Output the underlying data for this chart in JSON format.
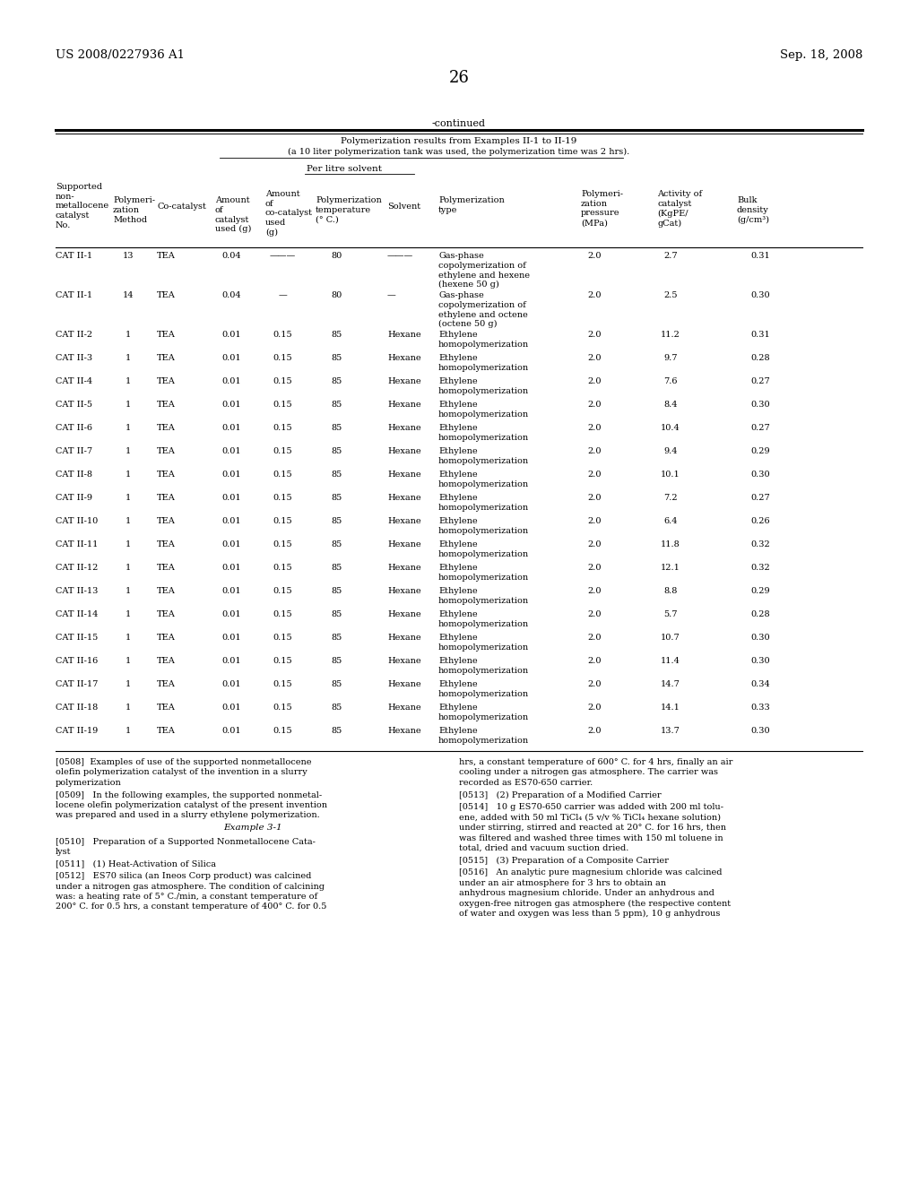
{
  "header_left": "US 2008/0227936 A1",
  "header_right": "Sep. 18, 2008",
  "page_number": "26",
  "continued_label": "-continued",
  "table_title_line1": "Polymerization results from Examples II-1 to II-19",
  "table_title_line2": "(a 10 liter polymerization tank was used, the polymerization time was 2 hrs).",
  "per_litre_label": "Per litre solvent",
  "rows": [
    [
      "CAT II-1",
      "13",
      "TEA",
      "0.04",
      "———",
      "80",
      "———",
      "Gas-phase\ncopolymerization of\nethylene and hexene\n(hexene 50 g)",
      "2.0",
      "2.7",
      "0.31"
    ],
    [
      "CAT II-1",
      "14",
      "TEA",
      "0.04",
      "—",
      "80",
      "—",
      "Gas-phase\ncopolymerization of\nethylene and octene\n(octene 50 g)",
      "2.0",
      "2.5",
      "0.30"
    ],
    [
      "CAT II-2",
      "1",
      "TEA",
      "0.01",
      "0.15",
      "85",
      "Hexane",
      "Ethylene\nhomopolymerization",
      "2.0",
      "11.2",
      "0.31"
    ],
    [
      "CAT II-3",
      "1",
      "TEA",
      "0.01",
      "0.15",
      "85",
      "Hexane",
      "Ethylene\nhomopolymerization",
      "2.0",
      "9.7",
      "0.28"
    ],
    [
      "CAT II-4",
      "1",
      "TEA",
      "0.01",
      "0.15",
      "85",
      "Hexane",
      "Ethylene\nhomopolymerization",
      "2.0",
      "7.6",
      "0.27"
    ],
    [
      "CAT II-5",
      "1",
      "TEA",
      "0.01",
      "0.15",
      "85",
      "Hexane",
      "Ethylene\nhomopolymerization",
      "2.0",
      "8.4",
      "0.30"
    ],
    [
      "CAT II-6",
      "1",
      "TEA",
      "0.01",
      "0.15",
      "85",
      "Hexane",
      "Ethylene\nhomopolymerization",
      "2.0",
      "10.4",
      "0.27"
    ],
    [
      "CAT II-7",
      "1",
      "TEA",
      "0.01",
      "0.15",
      "85",
      "Hexane",
      "Ethylene\nhomopolymerization",
      "2.0",
      "9.4",
      "0.29"
    ],
    [
      "CAT II-8",
      "1",
      "TEA",
      "0.01",
      "0.15",
      "85",
      "Hexane",
      "Ethylene\nhomopolymerization",
      "2.0",
      "10.1",
      "0.30"
    ],
    [
      "CAT II-9",
      "1",
      "TEA",
      "0.01",
      "0.15",
      "85",
      "Hexane",
      "Ethylene\nhomopolymerization",
      "2.0",
      "7.2",
      "0.27"
    ],
    [
      "CAT II-10",
      "1",
      "TEA",
      "0.01",
      "0.15",
      "85",
      "Hexane",
      "Ethylene\nhomopolymerization",
      "2.0",
      "6.4",
      "0.26"
    ],
    [
      "CAT II-11",
      "1",
      "TEA",
      "0.01",
      "0.15",
      "85",
      "Hexane",
      "Ethylene\nhomopolymerization",
      "2.0",
      "11.8",
      "0.32"
    ],
    [
      "CAT II-12",
      "1",
      "TEA",
      "0.01",
      "0.15",
      "85",
      "Hexane",
      "Ethylene\nhomopolymerization",
      "2.0",
      "12.1",
      "0.32"
    ],
    [
      "CAT II-13",
      "1",
      "TEA",
      "0.01",
      "0.15",
      "85",
      "Hexane",
      "Ethylene\nhomopolymerization",
      "2.0",
      "8.8",
      "0.29"
    ],
    [
      "CAT II-14",
      "1",
      "TEA",
      "0.01",
      "0.15",
      "85",
      "Hexane",
      "Ethylene\nhomopolymerization",
      "2.0",
      "5.7",
      "0.28"
    ],
    [
      "CAT II-15",
      "1",
      "TEA",
      "0.01",
      "0.15",
      "85",
      "Hexane",
      "Ethylene\nhomopolymerization",
      "2.0",
      "10.7",
      "0.30"
    ],
    [
      "CAT II-16",
      "1",
      "TEA",
      "0.01",
      "0.15",
      "85",
      "Hexane",
      "Ethylene\nhomopolymerization",
      "2.0",
      "11.4",
      "0.30"
    ],
    [
      "CAT II-17",
      "1",
      "TEA",
      "0.01",
      "0.15",
      "85",
      "Hexane",
      "Ethylene\nhomopolymerization",
      "2.0",
      "14.7",
      "0.34"
    ],
    [
      "CAT II-18",
      "1",
      "TEA",
      "0.01",
      "0.15",
      "85",
      "Hexane",
      "Ethylene\nhomopolymerization",
      "2.0",
      "14.1",
      "0.33"
    ],
    [
      "CAT II-19",
      "1",
      "TEA",
      "0.01",
      "0.15",
      "85",
      "Hexane",
      "Ethylene\nhomopolymerization",
      "2.0",
      "13.7",
      "0.30"
    ]
  ],
  "left_paragraphs": [
    {
      "tag": "[0508]",
      "body": "  Examples of use of the supported nonmetallocene\nolefin polymerization catalyst of the invention in a slurry\npolymerization",
      "italic": false
    },
    {
      "tag": "[0509]",
      "body": "   In the following examples, the supported nonmetal-\nlocene olefin polymerization catalyst of the present invention\nwas prepared and used in a slurry ethylene polymerization.",
      "italic": false
    },
    {
      "tag": "",
      "body": "Example 3-1",
      "italic": true,
      "center": true
    },
    {
      "tag": "[0510]",
      "body": "   Preparation of a Supported Nonmetallocene Cata-\nlyst",
      "italic": false
    },
    {
      "tag": "[0511]",
      "body": "   (1) Heat-Activation of Silica",
      "italic": false
    },
    {
      "tag": "[0512]",
      "body": "   ES70 silica (an Ineos Corp product) was calcined\nunder a nitrogen gas atmosphere. The condition of calcining\nwas: a heating rate of 5° C./min, a constant temperature of\n200° C. for 0.5 hrs, a constant temperature of 400° C. for 0.5",
      "italic": false
    }
  ],
  "right_paragraphs": [
    {
      "tag": "",
      "body": "hrs, a constant temperature of 600° C. for 4 hrs, finally an air\ncooling under a nitrogen gas atmosphere. The carrier was\nrecorded as ES70-650 carrier.",
      "italic": false
    },
    {
      "tag": "[0513]",
      "body": "   (2) Preparation of a Modified Carrier",
      "italic": false
    },
    {
      "tag": "[0514]",
      "body": "   10 g ES70-650 carrier was added with 200 ml tolu-\nene, added with 50 ml TiCl₄ (5 v/v % TiCl₄ hexane solution)\nunder stirring, stirred and reacted at 20° C. for 16 hrs, then\nwas filtered and washed three times with 150 ml toluene in\ntotal, dried and vacuum suction dried.",
      "italic": false
    },
    {
      "tag": "[0515]",
      "body": "   (3) Preparation of a Composite Carrier",
      "italic": false
    },
    {
      "tag": "[0516]",
      "body": "   An analytic pure magnesium chloride was calcined\nunder an air atmosphere for 3 hrs to obtain an\nanhydrous magnesium chloride. Under an anhydrous and\noxygen-free nitrogen gas atmosphere (the respective content\nof water and oxygen was less than 5 ppm), 10 g anhydrous",
      "italic": false
    }
  ]
}
